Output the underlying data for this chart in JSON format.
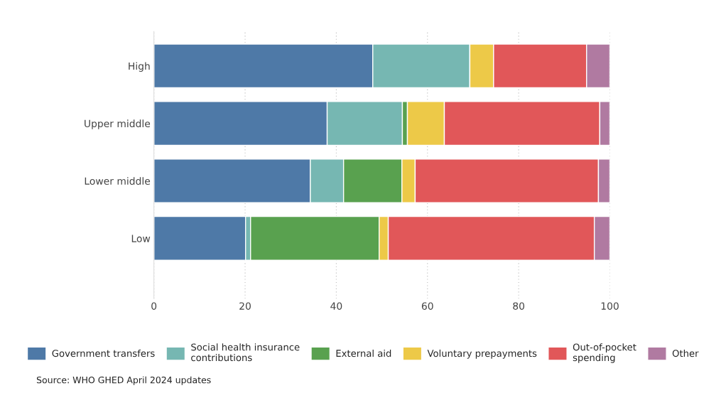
{
  "chart_data": {
    "type": "bar",
    "orientation": "horizontal",
    "stacked": true,
    "categories": [
      "High",
      "Upper middle",
      "Lower middle",
      "Low"
    ],
    "series": [
      {
        "name": "Government transfers",
        "color": "#4e79a7",
        "values": [
          48.0,
          38.0,
          34.3,
          20.1
        ]
      },
      {
        "name": "Social health insurance\ncontributions",
        "color": "#76b7b2",
        "values": [
          21.3,
          16.5,
          7.3,
          1.1
        ]
      },
      {
        "name": "External aid",
        "color": "#59a14f",
        "values": [
          0,
          1.1,
          12.8,
          28.2
        ]
      },
      {
        "name": "Voluntary prepayments",
        "color": "#edc948",
        "values": [
          5.2,
          8.1,
          2.9,
          2.0
        ]
      },
      {
        "name": "Out-of-pocket\nspending",
        "color": "#e15759",
        "values": [
          20.4,
          34.1,
          40.2,
          45.2
        ]
      },
      {
        "name": "Other",
        "color": "#b07aa1",
        "values": [
          5.1,
          2.2,
          2.5,
          3.4
        ]
      }
    ],
    "xlim": [
      0,
      100
    ],
    "xticks": [
      0,
      20,
      40,
      60,
      80,
      100
    ],
    "grid": "x",
    "legend": "bottom",
    "annotations": [
      "Source: WHO GHED April 2024 updates"
    ]
  }
}
